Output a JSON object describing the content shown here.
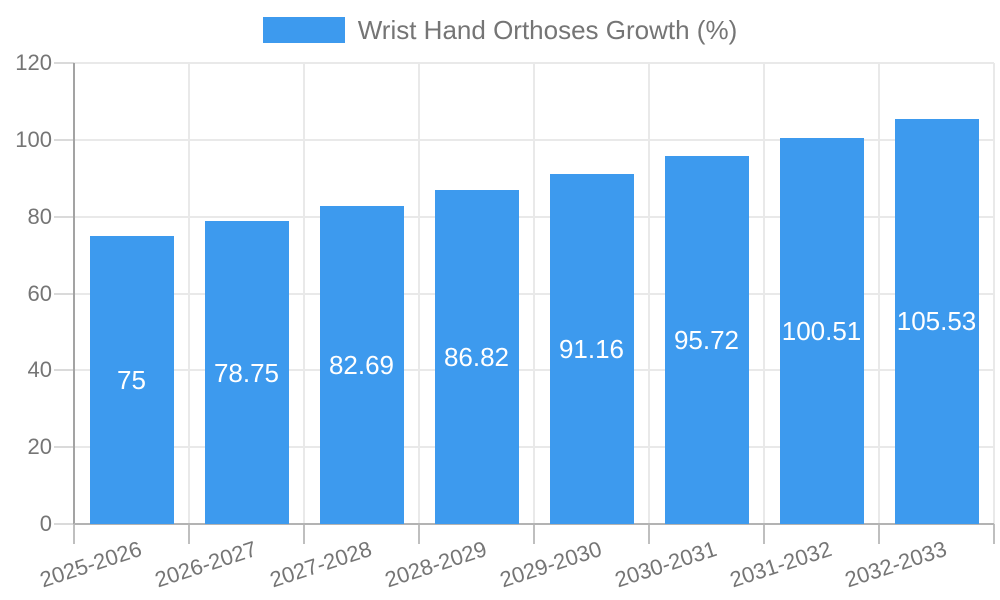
{
  "legend": {
    "label": "Wrist Hand Orthoses Growth (%)"
  },
  "colors": {
    "bar": "#3D9AEE",
    "bar_label_text": "#ffffff",
    "axis_text": "#757575",
    "grid_line": "#e9e9e9",
    "axis_line": "#a3a3a3",
    "baseline": "#b3b3b3",
    "tick_mark": "#bfbfbf"
  },
  "chart_data": {
    "type": "bar",
    "title": "Wrist Hand Orthoses Growth (%)",
    "categories": [
      "2025-2026",
      "2026-2027",
      "2027-2028",
      "2028-2029",
      "2029-2030",
      "2030-2031",
      "2031-2032",
      "2032-2033"
    ],
    "values": [
      75,
      78.75,
      82.69,
      86.82,
      91.16,
      95.72,
      100.51,
      105.53
    ],
    "bar_labels": [
      "75",
      "78.75",
      "82.69",
      "86.82",
      "91.16",
      "95.72",
      "100.51",
      "105.53"
    ],
    "series_name": "Wrist Hand Orthoses Growth (%)",
    "xlabel": "",
    "ylabel": "",
    "ylim": [
      0,
      120
    ],
    "yticks": [
      0,
      20,
      40,
      60,
      80,
      100,
      120
    ],
    "ytick_labels": [
      "0",
      "20",
      "40",
      "60",
      "80",
      "100",
      "120"
    ],
    "grid": true,
    "legend_position": "top",
    "x_tick_rotation_deg": -18
  }
}
